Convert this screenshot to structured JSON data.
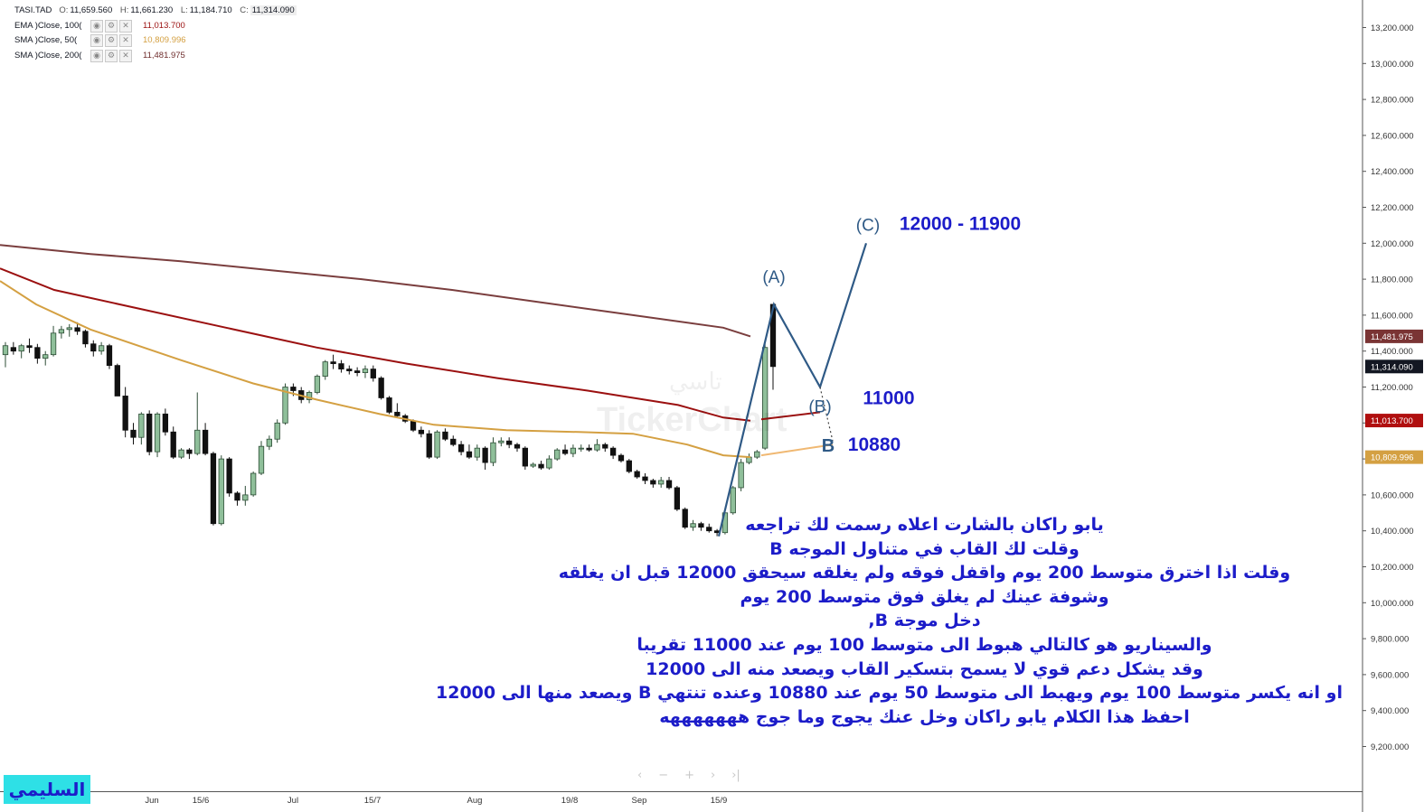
{
  "legend": {
    "symbol": "TASI.TAD",
    "open_label": "O:",
    "open": "11,659.560",
    "high_label": "H:",
    "high": "11,661.230",
    "low_label": "L:",
    "low": "11,184.710",
    "close_label": "C:",
    "close": "11,314.090",
    "indicators": [
      {
        "name": "EMA  )Close, 100(",
        "value": "11,013.700",
        "color": "#9b1010"
      },
      {
        "name": "SMA  )Close, 50(",
        "value": "10,809.996",
        "color": "#d4a042"
      },
      {
        "name": "SMA  )Close, 200(",
        "value": "11,481.975",
        "color": "#6e2c2c"
      }
    ],
    "button_icons": [
      "eye-icon",
      "gear-icon",
      "close-icon"
    ]
  },
  "chart_data": {
    "type": "candlestick",
    "title": "TASI.TAD",
    "y_ticks": [
      9200,
      9400,
      9600,
      9800,
      10000,
      10200,
      10400,
      10600,
      10800,
      11000,
      11200,
      11400,
      11600,
      11800,
      12000,
      12200,
      12400,
      12600,
      12800,
      13000,
      13200
    ],
    "y_tick_labels": [
      "9,200.000",
      "9,400.000",
      "9,600.000",
      "9,800.000",
      "10,000.000",
      "10,200.000",
      "10,400.000",
      "10,600.000",
      "10,800.000",
      "11,000.000",
      "11,200.000",
      "11,400.000",
      "11,600.000",
      "11,800.000",
      "12,000.000",
      "12,200.000",
      "12,400.000",
      "12,600.000",
      "12,800.000",
      "13,000.000",
      "13,200.000"
    ],
    "x_tick_labels": [
      "Jun",
      "15/6",
      "Jul",
      "15/7",
      "Aug",
      "19/8",
      "Sep",
      "15/9"
    ],
    "candles": [
      [
        11380,
        11450,
        11310,
        11430
      ],
      [
        11420,
        11450,
        11380,
        11400
      ],
      [
        11400,
        11440,
        11360,
        11430
      ],
      [
        11430,
        11470,
        11390,
        11420
      ],
      [
        11420,
        11440,
        11330,
        11360
      ],
      [
        11360,
        11400,
        11320,
        11380
      ],
      [
        11380,
        11540,
        11370,
        11500
      ],
      [
        11500,
        11540,
        11470,
        11520
      ],
      [
        11520,
        11550,
        11480,
        11530
      ],
      [
        11530,
        11560,
        11490,
        11510
      ],
      [
        11510,
        11520,
        11420,
        11440
      ],
      [
        11440,
        11460,
        11370,
        11400
      ],
      [
        11400,
        11450,
        11380,
        11430
      ],
      [
        11430,
        11440,
        11300,
        11320
      ],
      [
        11320,
        11330,
        11150,
        11150
      ],
      [
        11150,
        11200,
        10920,
        10960
      ],
      [
        10960,
        11000,
        10880,
        10920
      ],
      [
        10920,
        11060,
        10880,
        11050
      ],
      [
        11050,
        11070,
        10820,
        10840
      ],
      [
        10840,
        11060,
        10810,
        11050
      ],
      [
        11050,
        11080,
        10930,
        10950
      ],
      [
        10950,
        10980,
        10800,
        10810
      ],
      [
        10810,
        10860,
        10800,
        10850
      ],
      [
        10850,
        10860,
        10800,
        10830
      ],
      [
        10830,
        11170,
        10820,
        10960
      ],
      [
        10960,
        11000,
        10820,
        10830
      ],
      [
        10830,
        10840,
        10430,
        10440
      ],
      [
        10440,
        10820,
        10430,
        10800
      ],
      [
        10800,
        10810,
        10590,
        10610
      ],
      [
        10610,
        10620,
        10540,
        10570
      ],
      [
        10570,
        10650,
        10540,
        10600
      ],
      [
        10600,
        10730,
        10590,
        10720
      ],
      [
        10720,
        10900,
        10710,
        10870
      ],
      [
        10870,
        10930,
        10850,
        10910
      ],
      [
        10910,
        11020,
        10890,
        11000
      ],
      [
        11000,
        11220,
        10990,
        11200
      ],
      [
        11200,
        11220,
        11150,
        11180
      ],
      [
        11180,
        11200,
        11110,
        11130
      ],
      [
        11130,
        11180,
        11110,
        11170
      ],
      [
        11170,
        11270,
        11160,
        11260
      ],
      [
        11260,
        11350,
        11240,
        11340
      ],
      [
        11340,
        11380,
        11300,
        11330
      ],
      [
        11330,
        11350,
        11280,
        11300
      ],
      [
        11300,
        11320,
        11270,
        11290
      ],
      [
        11290,
        11310,
        11260,
        11280
      ],
      [
        11280,
        11320,
        11250,
        11300
      ],
      [
        11300,
        11320,
        11230,
        11250
      ],
      [
        11250,
        11260,
        11130,
        11140
      ],
      [
        11140,
        11150,
        11050,
        11060
      ],
      [
        11060,
        11110,
        11030,
        11040
      ],
      [
        11040,
        11050,
        11000,
        11010
      ],
      [
        11010,
        11020,
        10950,
        10960
      ],
      [
        10960,
        10980,
        10920,
        10940
      ],
      [
        10940,
        10960,
        10800,
        10810
      ],
      [
        10810,
        10960,
        10800,
        10950
      ],
      [
        10950,
        10970,
        10900,
        10910
      ],
      [
        10910,
        10930,
        10870,
        10880
      ],
      [
        10880,
        10900,
        10820,
        10840
      ],
      [
        10840,
        10880,
        10800,
        10810
      ],
      [
        10810,
        10880,
        10790,
        10860
      ],
      [
        10860,
        10870,
        10740,
        10780
      ],
      [
        10780,
        10920,
        10760,
        10890
      ],
      [
        10890,
        10920,
        10870,
        10900
      ],
      [
        10900,
        10920,
        10860,
        10880
      ],
      [
        10880,
        10890,
        10840,
        10860
      ],
      [
        10860,
        10870,
        10740,
        10760
      ],
      [
        10760,
        10780,
        10750,
        10770
      ],
      [
        10770,
        10790,
        10740,
        10750
      ],
      [
        10750,
        10820,
        10740,
        10800
      ],
      [
        10800,
        10860,
        10790,
        10850
      ],
      [
        10850,
        10880,
        10820,
        10830
      ],
      [
        10830,
        10880,
        10810,
        10860
      ],
      [
        10860,
        10880,
        10840,
        10860
      ],
      [
        10860,
        10880,
        10840,
        10850
      ],
      [
        10850,
        10910,
        10840,
        10880
      ],
      [
        10880,
        10890,
        10840,
        10860
      ],
      [
        10860,
        10870,
        10800,
        10820
      ],
      [
        10820,
        10830,
        10780,
        10790
      ],
      [
        10790,
        10800,
        10720,
        10730
      ],
      [
        10730,
        10740,
        10690,
        10700
      ],
      [
        10700,
        10720,
        10660,
        10680
      ],
      [
        10680,
        10690,
        10640,
        10660
      ],
      [
        10660,
        10700,
        10640,
        10680
      ],
      [
        10680,
        10700,
        10630,
        10640
      ],
      [
        10640,
        10650,
        10510,
        10520
      ],
      [
        10520,
        10530,
        10410,
        10420
      ],
      [
        10420,
        10460,
        10400,
        10440
      ],
      [
        10440,
        10450,
        10400,
        10420
      ],
      [
        10420,
        10440,
        10390,
        10400
      ],
      [
        10400,
        10410,
        10370,
        10390
      ],
      [
        10390,
        10520,
        10380,
        10500
      ],
      [
        10500,
        10650,
        10490,
        10640
      ],
      [
        10640,
        10800,
        10620,
        10780
      ],
      [
        10780,
        10830,
        10770,
        10810
      ],
      [
        10810,
        10850,
        10800,
        10840
      ],
      [
        10860,
        11440,
        10850,
        11420
      ],
      [
        11660,
        11661,
        11185,
        11314
      ]
    ],
    "ema100": [
      [
        0,
        11860
      ],
      [
        60,
        11740
      ],
      [
        150,
        11640
      ],
      [
        250,
        11530
      ],
      [
        350,
        11420
      ],
      [
        450,
        11330
      ],
      [
        550,
        11250
      ],
      [
        650,
        11180
      ],
      [
        750,
        11100
      ],
      [
        800,
        11030
      ],
      [
        830,
        11013
      ]
    ],
    "sma50": [
      [
        0,
        11790
      ],
      [
        40,
        11660
      ],
      [
        100,
        11520
      ],
      [
        200,
        11350
      ],
      [
        280,
        11220
      ],
      [
        350,
        11130
      ],
      [
        420,
        11050
      ],
      [
        480,
        10990
      ],
      [
        560,
        10960
      ],
      [
        640,
        10950
      ],
      [
        700,
        10940
      ],
      [
        760,
        10880
      ],
      [
        800,
        10820
      ],
      [
        830,
        10810
      ]
    ],
    "sma200": [
      [
        0,
        11990
      ],
      [
        100,
        11940
      ],
      [
        200,
        11900
      ],
      [
        300,
        11850
      ],
      [
        400,
        11800
      ],
      [
        500,
        11740
      ],
      [
        600,
        11670
      ],
      [
        700,
        11600
      ],
      [
        800,
        11530
      ],
      [
        830,
        11482
      ]
    ],
    "projection_waves": [
      [
        795,
        10370
      ],
      [
        856,
        11660
      ],
      [
        907,
        11200
      ],
      [
        958,
        12000
      ]
    ],
    "projection_b_ext": [
      [
        907,
        11200
      ],
      [
        921,
        10900
      ]
    ],
    "projection_ema_ext": [
      [
        842,
        11020
      ],
      [
        907,
        11060
      ]
    ],
    "projection_sma_ext": [
      [
        842,
        10820
      ],
      [
        921,
        10880
      ]
    ],
    "wave_labels": [
      {
        "text": "(A)",
        "x": 856,
        "price": 11780
      },
      {
        "text": "(B)",
        "x": 907,
        "price": 11060
      },
      {
        "text": "(C)",
        "x": 960,
        "price": 12070
      },
      {
        "text": "B",
        "x": 916,
        "price": 10840
      }
    ],
    "target_labels": [
      {
        "text": "12000 - 11900",
        "x": 1062,
        "price": 12110
      },
      {
        "text": "11000",
        "x": 983,
        "price": 11140
      },
      {
        "text": "10880",
        "x": 967,
        "price": 10880
      }
    ],
    "price_tags": [
      {
        "text": "11,481.975",
        "price": 11481.975,
        "color": "#7a3434"
      },
      {
        "text": "11,314.090",
        "price": 11314.09,
        "color": "#131722"
      },
      {
        "text": "11,013.700",
        "price": 11013.7,
        "color": "#b00f0f"
      },
      {
        "text": "10,809.996",
        "price": 10809.996,
        "color": "#d4a042"
      }
    ],
    "watermark": "TickerChart",
    "watermark_ar": "تاسي"
  },
  "annotation_lines": [
    "يابو راكان بالشارت اعلاه رسمت لك تراجعه",
    "وقلت لك القاب في متناول الموجه B",
    "وقلت اذا اخترق متوسط 200 يوم واقفل فوقه ولم يغلقه سيحقق 12000 قبل ان يغلقه",
    "وشوفة عينك لم يغلق فوق متوسط 200 يوم",
    "دخل موجة B,",
    "والسيناريو  هو كالتالي هبوط الى متوسط 100 يوم عند 11000 تقريبا",
    "وقد يشكل دعم قوي لا يسمح بتسكير القاب ويصعد منه الى 12000",
    "او انه يكسر متوسط 100 يوم  ويهبط الى متوسط 50 يوم عند 10880 وعنده تنتهي B ويصعد منها الى 12000",
    "احفظ هذا الكلام يابو راكان وخل عنك يجوج وما جوج هههههههه"
  ],
  "signature": "السليمي",
  "nav_icons": [
    "chevron-left-icon",
    "zoom-out-icon",
    "zoom-in-icon",
    "chevron-right-icon",
    "jump-end-icon"
  ],
  "nav_glyphs": [
    "‹",
    "−",
    "+",
    "›",
    "›|"
  ],
  "colors": {
    "up": "#8fbf9a",
    "up_border": "#2d4d36",
    "down": "#111111",
    "ema": "#9b1010",
    "sma50": "#d4a042",
    "sma200": "#7a3e3e",
    "wave": "#2f5a86",
    "text_blue": "#1c1cc9"
  }
}
